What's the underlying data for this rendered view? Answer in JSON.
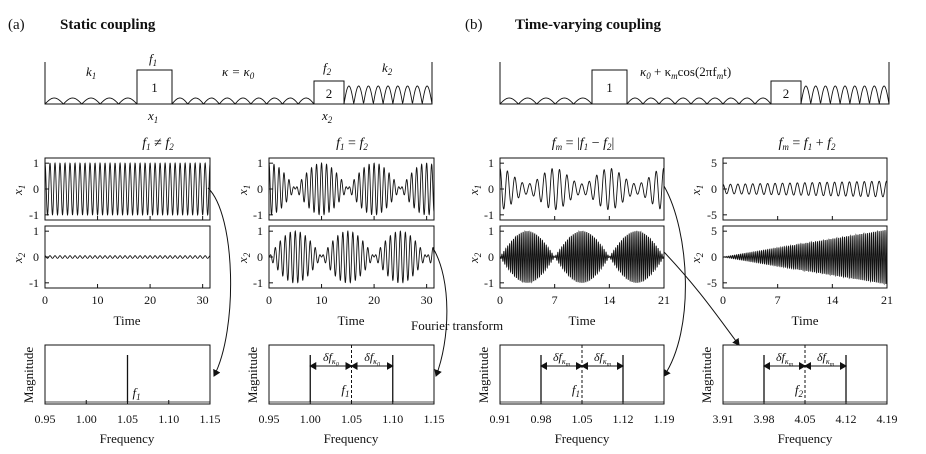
{
  "panels": {
    "a": {
      "tag": "(a)",
      "title": "Static coupling"
    },
    "b": {
      "tag": "(b)",
      "title": "Time-varying coupling"
    }
  },
  "schematic": {
    "k1": "k",
    "k1_sub": "1",
    "k2": "k",
    "k2_sub": "2",
    "f1": "f",
    "f1_sub": "1",
    "f2": "f",
    "f2_sub": "2",
    "x1": "x",
    "x1_sub": "1",
    "x2": "x",
    "x2_sub": "2",
    "mass1": "1",
    "mass2": "2",
    "coupling_static": "κ = κ",
    "coupling_static_sub": "0",
    "coupling_varying": "κ",
    "coupling_varying_rest": " + κ",
    "coupling_varying_cos": "cos(2πf",
    "coupling_varying_end": "t)",
    "sub_0": "0",
    "sub_m": "m"
  },
  "conditions": {
    "c1": {
      "lhs": "f",
      "lhs_sub": "1",
      "op": " ≠ ",
      "rhs": "f",
      "rhs_sub": "2"
    },
    "c2": {
      "lhs": "f",
      "lhs_sub": "1",
      "op": " = ",
      "rhs": "f",
      "rhs_sub": "2"
    },
    "c3": {
      "lhs": "f",
      "lhs_sub": "m",
      "op": " = |",
      "mid": "f",
      "mid_sub": "1",
      "op2": " − ",
      "rhs": "f",
      "rhs_sub": "2",
      "end": "|"
    },
    "c4": {
      "lhs": "f",
      "lhs_sub": "m",
      "op": " = ",
      "mid": "f",
      "mid_sub": "1",
      "op2": " + ",
      "rhs": "f",
      "rhs_sub": "2"
    }
  },
  "time_axes": {
    "xlabel": "Time",
    "ylabel_x1": "x",
    "ylabel_x1_sub": "1",
    "ylabel_x2": "x",
    "ylabel_x2_sub": "2",
    "static": {
      "xticks": [
        "0",
        "10",
        "20",
        "30"
      ],
      "xrange": [
        0,
        31.4
      ],
      "yticks": [
        "1",
        "0",
        "-1"
      ],
      "yrange": [
        -1.2,
        1.2
      ]
    },
    "varying_col3": {
      "xticks": [
        "0",
        "7",
        "14",
        "21"
      ],
      "xrange": [
        0,
        21
      ],
      "yticks": [
        "1",
        "0",
        "-1"
      ],
      "yrange": [
        -1.2,
        1.2
      ]
    },
    "varying_col4": {
      "xticks": [
        "0",
        "7",
        "14",
        "21"
      ],
      "xrange": [
        0,
        21
      ],
      "yticks": [
        "5",
        "0",
        "-5"
      ],
      "yrange": [
        -6,
        6
      ]
    }
  },
  "spectra": {
    "xlabel": "Frequency",
    "ylabel": "Magnitude",
    "s1": {
      "xticks": [
        "0.95",
        "1.00",
        "1.05",
        "1.10",
        "1.15"
      ],
      "xrange": [
        0.95,
        1.15
      ],
      "peaks": [
        1.05
      ],
      "label": "f",
      "label_sub": "1"
    },
    "s2": {
      "xticks": [
        "0.95",
        "1.00",
        "1.05",
        "1.10",
        "1.15"
      ],
      "xrange": [
        0.95,
        1.15
      ],
      "peaks": [
        1.0,
        1.1
      ],
      "center": 1.05,
      "label": "f",
      "label_sub": "1",
      "delta": "δf",
      "delta_sub": "κ",
      "delta_subsub": "0"
    },
    "s3": {
      "xticks": [
        "0.91",
        "0.98",
        "1.05",
        "1.12",
        "1.19"
      ],
      "xrange": [
        0.91,
        1.19
      ],
      "peaks": [
        0.98,
        1.12
      ],
      "center": 1.05,
      "label": "f",
      "label_sub": "1",
      "delta": "δf",
      "delta_sub": "κ",
      "delta_subsub": "m"
    },
    "s4": {
      "xticks": [
        "3.91",
        "3.98",
        "4.05",
        "4.12",
        "4.19"
      ],
      "xrange": [
        3.91,
        4.19
      ],
      "peaks": [
        3.98,
        4.12
      ],
      "center": 4.05,
      "label": "f",
      "label_sub": "2",
      "delta": "δf",
      "delta_sub": "κ",
      "delta_subsub": "m"
    }
  },
  "annotation": "Fourier transform"
}
